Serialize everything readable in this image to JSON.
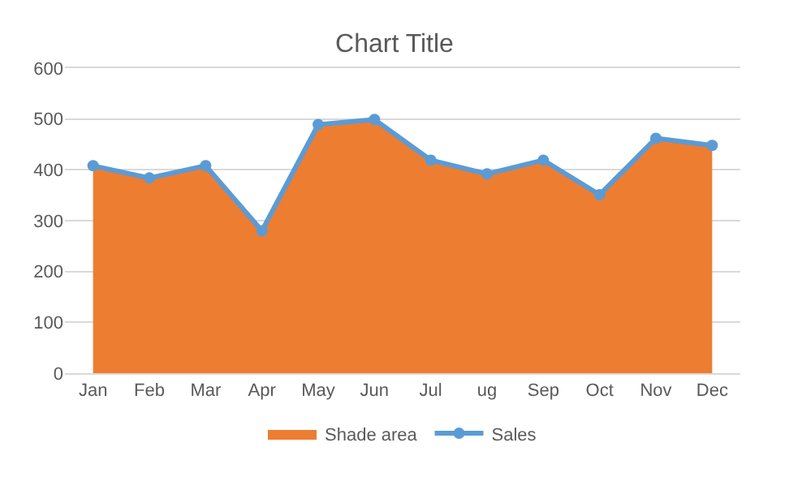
{
  "chart_data": {
    "type": "line",
    "title": "Chart Title",
    "categories": [
      "Jan",
      "Feb",
      "Mar",
      "Apr",
      "May",
      "Jun",
      "Jul",
      "ug",
      "Sep",
      "Oct",
      "Nov",
      "Dec"
    ],
    "series": [
      {
        "name": "Shade area",
        "type": "area",
        "color": "#ed7d31",
        "values": [
          408,
          384,
          408,
          280,
          489,
          499,
          419,
          392,
          419,
          351,
          462,
          448
        ]
      },
      {
        "name": "Sales",
        "color": "#5b9bd5",
        "marker": "circle",
        "values": [
          408,
          384,
          408,
          280,
          489,
          499,
          419,
          392,
          419,
          351,
          462,
          448
        ]
      }
    ],
    "ylim": [
      0,
      600
    ],
    "yticks": [
      0,
      100,
      200,
      300,
      400,
      500,
      600
    ],
    "grid": "y",
    "legend": "bottom"
  }
}
